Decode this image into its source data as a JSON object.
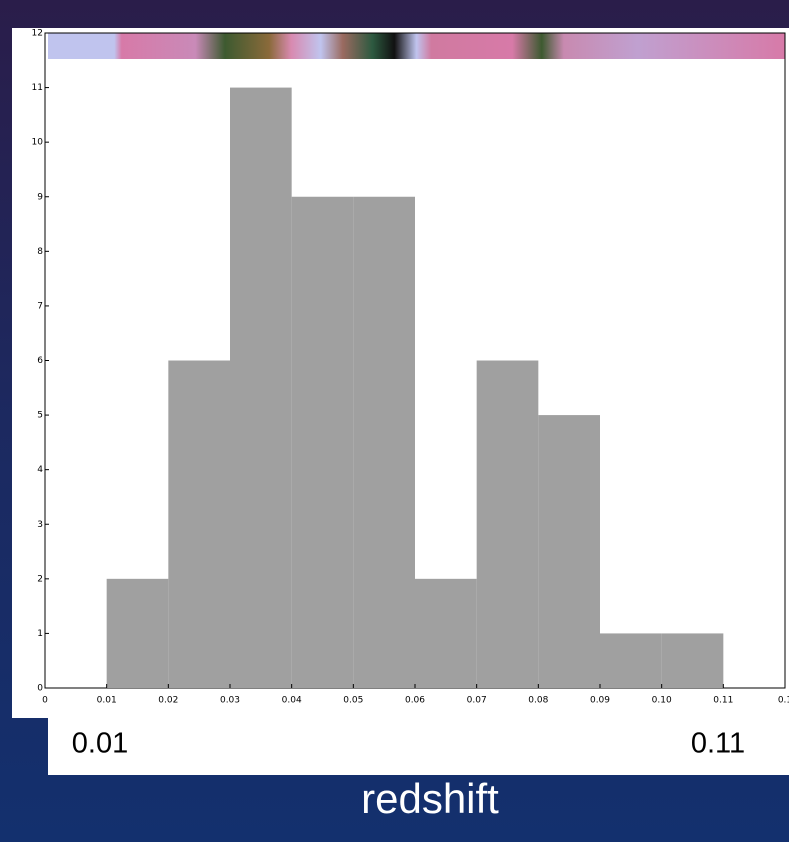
{
  "chart_data": {
    "type": "histogram",
    "xlabel": "redshift",
    "annotations": [
      "0.01",
      "0.11"
    ],
    "bins": [
      0.01,
      0.02,
      0.03,
      0.04,
      0.05,
      0.06,
      0.07,
      0.08,
      0.09,
      0.1,
      0.11
    ],
    "values": [
      2,
      6,
      11,
      9,
      9,
      2,
      6,
      5,
      1,
      1
    ],
    "color": "#a0a0a0",
    "xlim": [
      0,
      0.12
    ],
    "xticks": [
      0,
      0.01,
      0.02,
      0.03,
      0.04,
      0.05,
      0.06,
      0.07,
      0.08,
      0.09,
      {
        "value": 0.1,
        "label": "0.10"
      },
      0.11,
      {
        "value": 0.12,
        "label": "0.1"
      }
    ],
    "ylim": [
      0,
      12
    ],
    "yticks": [
      0,
      1,
      2,
      3,
      4,
      5,
      6,
      7,
      8,
      9,
      10,
      11,
      12
    ]
  }
}
